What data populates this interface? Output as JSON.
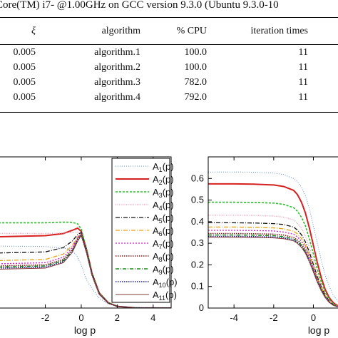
{
  "caption": "Core(TM) i7- @1.00GHz on GCC version 9.3.0 (Ubuntu 9.3.0-10",
  "table": {
    "headers": [
      "ξ",
      "algorithm",
      "% CPU",
      "iteration times"
    ],
    "rows": [
      [
        "0.005",
        "algorithm.1",
        "100.0",
        "11"
      ],
      [
        "0.005",
        "algorithm.2",
        "100.0",
        "11"
      ],
      [
        "0.005",
        "algorithm.3",
        "782.0",
        "11"
      ],
      [
        "0.005",
        "algorithm.4",
        "792.0",
        "11"
      ]
    ]
  },
  "chart_data": [
    {
      "type": "line",
      "xlabel": "log p",
      "xlim": [
        -4.6,
        5
      ],
      "ylim": [
        0,
        0.7
      ],
      "x_ticks": [
        "-2",
        "0",
        "2",
        "4"
      ],
      "legend_position": "top-right",
      "series": [
        {
          "name": "A1(p)",
          "sub": "1",
          "color": "#5b8fd6",
          "dash": "1 2",
          "width": 1,
          "x": [
            -4.6,
            -2,
            -0.8,
            -0.3,
            0,
            0.3,
            0.6,
            1,
            1.5,
            2,
            3,
            5
          ],
          "values": [
            0.287,
            0.285,
            0.275,
            0.25,
            0.2,
            0.13,
            0.09,
            0.045,
            0.02,
            0.008,
            0.001,
            0
          ]
        },
        {
          "name": "A2(p)",
          "sub": "2",
          "color": "#d62020",
          "dash": "",
          "width": 2,
          "x": [
            -4.6,
            -2,
            -1,
            -0.5,
            -0.2,
            0,
            0.3,
            0.6,
            1,
            1.5,
            2,
            3,
            5
          ],
          "values": [
            0.33,
            0.335,
            0.345,
            0.36,
            0.37,
            0.355,
            0.27,
            0.16,
            0.07,
            0.025,
            0.008,
            0.001,
            0
          ]
        },
        {
          "name": "A3(p)",
          "sub": "3",
          "color": "#22c022",
          "dash": "3 2",
          "width": 1.6,
          "x": [
            -4.6,
            -2,
            -1,
            -0.5,
            -0.2,
            0,
            0.3,
            0.6,
            1,
            1.5,
            2,
            3,
            5
          ],
          "values": [
            0.395,
            0.395,
            0.398,
            0.397,
            0.39,
            0.365,
            0.27,
            0.16,
            0.07,
            0.025,
            0.008,
            0.001,
            0
          ]
        },
        {
          "name": "A4(p)",
          "sub": "4",
          "color": "#f2a0b8",
          "dash": "1 1.5",
          "width": 1.4,
          "x": [
            -4.6,
            -2,
            -1,
            -0.5,
            -0.2,
            0,
            0.3,
            0.6,
            1,
            1.5,
            2,
            3,
            5
          ],
          "values": [
            0.345,
            0.345,
            0.347,
            0.35,
            0.352,
            0.345,
            0.26,
            0.155,
            0.068,
            0.024,
            0.008,
            0.001,
            0
          ]
        },
        {
          "name": "A5(p)",
          "sub": "5",
          "color": "#111111",
          "dash": "6 2 1 2",
          "width": 1.3,
          "x": [
            -4.6,
            -2,
            -1,
            -0.5,
            -0.2,
            0,
            0.3,
            0.6,
            1,
            1.5,
            2,
            3,
            5
          ],
          "values": [
            0.255,
            0.26,
            0.28,
            0.31,
            0.34,
            0.35,
            0.265,
            0.16,
            0.068,
            0.024,
            0.008,
            0.001,
            0
          ]
        },
        {
          "name": "A6(p)",
          "sub": "6",
          "color": "#e8a010",
          "dash": "6 2 1 2",
          "width": 1.3,
          "x": [
            -4.6,
            -2,
            -1,
            -0.5,
            -0.2,
            0,
            0.3,
            0.6,
            1,
            1.5,
            2,
            3,
            5
          ],
          "values": [
            0.22,
            0.225,
            0.25,
            0.29,
            0.33,
            0.345,
            0.26,
            0.155,
            0.066,
            0.023,
            0.008,
            0.001,
            0
          ]
        },
        {
          "name": "A7(p)",
          "sub": "7",
          "color": "#cc22cc",
          "dash": "2 2",
          "width": 1.3,
          "x": [
            -4.6,
            -2,
            -1,
            -0.5,
            -0.2,
            0,
            0.3,
            0.6,
            1,
            1.5,
            2,
            3,
            5
          ],
          "values": [
            0.205,
            0.21,
            0.235,
            0.28,
            0.325,
            0.345,
            0.26,
            0.155,
            0.066,
            0.023,
            0.008,
            0.001,
            0
          ]
        },
        {
          "name": "A8(p)",
          "sub": "8",
          "color": "#8b1a1a",
          "dash": "1.5 1.5",
          "width": 1.6,
          "x": [
            -4.6,
            -2,
            -1,
            -0.5,
            -0.2,
            0,
            0.3,
            0.6,
            1,
            1.5,
            2,
            3,
            5
          ],
          "values": [
            0.195,
            0.2,
            0.225,
            0.27,
            0.32,
            0.34,
            0.258,
            0.154,
            0.065,
            0.023,
            0.008,
            0.001,
            0
          ]
        },
        {
          "name": "A9(p)",
          "sub": "9",
          "color": "#1f8a1f",
          "dash": "5 2 1 2",
          "width": 1.4,
          "x": [
            -4.6,
            -2,
            -1,
            -0.5,
            -0.2,
            0,
            0.3,
            0.6,
            1,
            1.5,
            2,
            3,
            5
          ],
          "values": [
            0.19,
            0.195,
            0.22,
            0.265,
            0.315,
            0.34,
            0.257,
            0.153,
            0.065,
            0.023,
            0.008,
            0.001,
            0
          ]
        },
        {
          "name": "A10(p)",
          "sub": "10",
          "color": "#1a1a8c",
          "dash": "1.5 1.5",
          "width": 1.6,
          "x": [
            -4.6,
            -2,
            -1,
            -0.5,
            -0.2,
            0,
            0.3,
            0.6,
            1,
            1.5,
            2,
            3,
            5
          ],
          "values": [
            0.185,
            0.19,
            0.215,
            0.262,
            0.312,
            0.338,
            0.256,
            0.152,
            0.064,
            0.022,
            0.008,
            0.001,
            0
          ]
        },
        {
          "name": "A11(p)",
          "sub": "11",
          "color": "#8b3a3a",
          "dash": "",
          "width": 1,
          "x": [
            -4.6,
            -2,
            -1,
            -0.5,
            -0.2,
            0,
            0.3,
            0.6,
            1,
            1.5,
            2,
            3,
            5
          ],
          "values": [
            0.18,
            0.185,
            0.21,
            0.258,
            0.31,
            0.336,
            0.255,
            0.151,
            0.064,
            0.022,
            0.008,
            0.001,
            0
          ]
        }
      ]
    },
    {
      "type": "line",
      "xlabel": "log p",
      "xlim": [
        -5.3,
        1.6
      ],
      "ylim": [
        0,
        0.7
      ],
      "x_ticks": [
        "-4",
        "-2",
        "0"
      ],
      "y_ticks": [
        "0",
        "0.1",
        "0.2",
        "0.3",
        "0.4",
        "0.5",
        "0.6"
      ],
      "series": [
        {
          "color": "#5b8fd6",
          "dash": "1 2",
          "width": 1,
          "x": [
            -5.3,
            -4,
            -3,
            -2,
            -1.5,
            -1,
            -0.8,
            -0.6,
            -0.4,
            -0.2,
            0,
            0.2,
            0.4,
            0.6,
            0.8,
            1,
            1.2,
            1.6
          ],
          "values": [
            0.63,
            0.63,
            0.629,
            0.625,
            0.618,
            0.6,
            0.585,
            0.56,
            0.52,
            0.46,
            0.38,
            0.3,
            0.22,
            0.15,
            0.1,
            0.06,
            0.035,
            0.01
          ]
        },
        {
          "color": "#d62020",
          "dash": "",
          "width": 2,
          "x": [
            -5.3,
            -4,
            -3,
            -2,
            -1.5,
            -1,
            -0.8,
            -0.6,
            -0.4,
            -0.2,
            0,
            0.2,
            0.4,
            0.6,
            0.8,
            1,
            1.2,
            1.6
          ],
          "values": [
            0.575,
            0.575,
            0.574,
            0.57,
            0.563,
            0.545,
            0.525,
            0.49,
            0.44,
            0.37,
            0.29,
            0.21,
            0.14,
            0.085,
            0.048,
            0.025,
            0.012,
            0.003
          ]
        },
        {
          "color": "#22c022",
          "dash": "3 2",
          "width": 1.6,
          "x": [
            -5.3,
            -4,
            -3,
            -2,
            -1.5,
            -1,
            -0.8,
            -0.6,
            -0.4,
            -0.2,
            0,
            0.2,
            0.4,
            0.6,
            0.8,
            1,
            1.2,
            1.6
          ],
          "values": [
            0.49,
            0.49,
            0.489,
            0.486,
            0.48,
            0.465,
            0.448,
            0.42,
            0.38,
            0.32,
            0.25,
            0.18,
            0.12,
            0.072,
            0.04,
            0.02,
            0.01,
            0.002
          ]
        },
        {
          "color": "#f2a0b8",
          "dash": "1 1.5",
          "width": 1.4,
          "x": [
            -5.3,
            -4,
            -3,
            -2,
            -1.5,
            -1,
            -0.8,
            -0.6,
            -0.4,
            -0.2,
            0,
            0.2,
            0.4,
            0.6,
            0.8,
            1,
            1.2,
            1.6
          ],
          "values": [
            0.43,
            0.43,
            0.429,
            0.426,
            0.421,
            0.408,
            0.393,
            0.369,
            0.333,
            0.281,
            0.219,
            0.158,
            0.105,
            0.063,
            0.035,
            0.018,
            0.009,
            0.002
          ]
        },
        {
          "color": "#111111",
          "dash": "6 2 1 2",
          "width": 1.3,
          "x": [
            -5.3,
            -4,
            -3,
            -2,
            -1.5,
            -1,
            -0.8,
            -0.6,
            -0.4,
            -0.2,
            0,
            0.2,
            0.4,
            0.6,
            0.8,
            1,
            1.2,
            1.6
          ],
          "values": [
            0.395,
            0.395,
            0.394,
            0.391,
            0.387,
            0.375,
            0.361,
            0.339,
            0.306,
            0.258,
            0.201,
            0.145,
            0.097,
            0.058,
            0.032,
            0.016,
            0.008,
            0.002
          ]
        },
        {
          "color": "#e8a010",
          "dash": "6 2 1 2",
          "width": 1.3,
          "x": [
            -5.3,
            -4,
            -3,
            -2,
            -1.5,
            -1,
            -0.8,
            -0.6,
            -0.4,
            -0.2,
            0,
            0.2,
            0.4,
            0.6,
            0.8,
            1,
            1.2,
            1.6
          ],
          "values": [
            0.375,
            0.375,
            0.374,
            0.371,
            0.367,
            0.356,
            0.343,
            0.322,
            0.29,
            0.245,
            0.191,
            0.138,
            0.092,
            0.055,
            0.031,
            0.015,
            0.008,
            0.002
          ]
        },
        {
          "color": "#cc22cc",
          "dash": "2 2",
          "width": 1.3,
          "x": [
            -5.3,
            -4,
            -3,
            -2,
            -1.5,
            -1,
            -0.8,
            -0.6,
            -0.4,
            -0.2,
            0,
            0.2,
            0.4,
            0.6,
            0.8,
            1,
            1.2,
            1.6
          ],
          "values": [
            0.36,
            0.36,
            0.359,
            0.357,
            0.352,
            0.342,
            0.329,
            0.309,
            0.279,
            0.235,
            0.183,
            0.132,
            0.088,
            0.053,
            0.029,
            0.015,
            0.007,
            0.002
          ]
        },
        {
          "color": "#8b1a1a",
          "dash": "1.5 1.5",
          "width": 1.6,
          "x": [
            -5.3,
            -4,
            -3,
            -2,
            -1.5,
            -1,
            -0.8,
            -0.6,
            -0.4,
            -0.2,
            0,
            0.2,
            0.4,
            0.6,
            0.8,
            1,
            1.2,
            1.6
          ],
          "values": [
            0.345,
            0.345,
            0.344,
            0.342,
            0.338,
            0.327,
            0.315,
            0.296,
            0.267,
            0.225,
            0.175,
            0.127,
            0.085,
            0.051,
            0.028,
            0.014,
            0.007,
            0.002
          ]
        },
        {
          "color": "#1f8a1f",
          "dash": "5 2 1 2",
          "width": 1.4,
          "x": [
            -5.3,
            -4,
            -3,
            -2,
            -1.5,
            -1,
            -0.8,
            -0.6,
            -0.4,
            -0.2,
            0,
            0.2,
            0.4,
            0.6,
            0.8,
            1,
            1.2,
            1.6
          ],
          "values": [
            0.338,
            0.338,
            0.337,
            0.335,
            0.331,
            0.32,
            0.308,
            0.29,
            0.261,
            0.22,
            0.172,
            0.124,
            0.083,
            0.05,
            0.027,
            0.014,
            0.007,
            0.002
          ]
        },
        {
          "color": "#1a1a8c",
          "dash": "1.5 1.5",
          "width": 1.6,
          "x": [
            -5.3,
            -4,
            -3,
            -2,
            -1.5,
            -1,
            -0.8,
            -0.6,
            -0.4,
            -0.2,
            0,
            0.2,
            0.4,
            0.6,
            0.8,
            1,
            1.2,
            1.6
          ],
          "values": [
            0.332,
            0.332,
            0.331,
            0.329,
            0.325,
            0.315,
            0.303,
            0.285,
            0.257,
            0.216,
            0.169,
            0.122,
            0.081,
            0.049,
            0.027,
            0.014,
            0.007,
            0.002
          ]
        },
        {
          "color": "#8b3a3a",
          "dash": "",
          "width": 1,
          "x": [
            -5.3,
            -4,
            -3,
            -2,
            -1.5,
            -1,
            -0.8,
            -0.6,
            -0.4,
            -0.2,
            0,
            0.2,
            0.4,
            0.6,
            0.8,
            1,
            1.2,
            1.6
          ],
          "values": [
            0.328,
            0.328,
            0.327,
            0.325,
            0.321,
            0.311,
            0.299,
            0.281,
            0.254,
            0.214,
            0.167,
            0.12,
            0.08,
            0.048,
            0.026,
            0.013,
            0.007,
            0.002
          ]
        }
      ]
    }
  ]
}
